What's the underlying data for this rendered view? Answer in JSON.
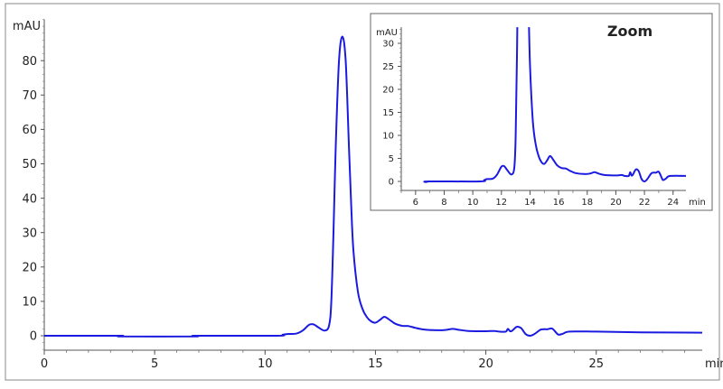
{
  "chart_data": [
    {
      "type": "line",
      "ylabel": "mAU",
      "xlabel": "min",
      "xlim": [
        0,
        29.8
      ],
      "ylim": [
        -4,
        92
      ],
      "xticks": [
        0,
        5,
        10,
        15,
        20,
        25
      ],
      "yticks": [
        0,
        10,
        20,
        30,
        40,
        50,
        60,
        70,
        80
      ],
      "grid": false,
      "color": "#1a1ae0",
      "points": [
        [
          0,
          0
        ],
        [
          3.4,
          0
        ],
        [
          3.5,
          -0.2
        ],
        [
          6.8,
          -0.2
        ],
        [
          6.9,
          0
        ],
        [
          10.5,
          0
        ],
        [
          10.8,
          0.3
        ],
        [
          11.0,
          0.5
        ],
        [
          11.4,
          0.6
        ],
        [
          11.7,
          1.5
        ],
        [
          12.0,
          3.2
        ],
        [
          12.2,
          3.3
        ],
        [
          12.4,
          2.5
        ],
        [
          12.7,
          1.5
        ],
        [
          12.9,
          3
        ],
        [
          13.0,
          10
        ],
        [
          13.1,
          30
        ],
        [
          13.2,
          55
        ],
        [
          13.35,
          80
        ],
        [
          13.5,
          87
        ],
        [
          13.65,
          80
        ],
        [
          13.8,
          55
        ],
        [
          13.9,
          38
        ],
        [
          14.0,
          25
        ],
        [
          14.2,
          13
        ],
        [
          14.4,
          8
        ],
        [
          14.6,
          5.5
        ],
        [
          14.8,
          4.2
        ],
        [
          15.0,
          3.8
        ],
        [
          15.2,
          4.6
        ],
        [
          15.4,
          5.5
        ],
        [
          15.6,
          4.8
        ],
        [
          15.9,
          3.5
        ],
        [
          16.2,
          2.9
        ],
        [
          16.5,
          2.8
        ],
        [
          16.8,
          2.3
        ],
        [
          17.2,
          1.8
        ],
        [
          17.8,
          1.6
        ],
        [
          18.2,
          1.7
        ],
        [
          18.5,
          2.0
        ],
        [
          18.8,
          1.7
        ],
        [
          19.2,
          1.4
        ],
        [
          20.0,
          1.3
        ],
        [
          20.4,
          1.4
        ],
        [
          20.6,
          1.2
        ],
        [
          20.9,
          1.2
        ],
        [
          21.0,
          2.0
        ],
        [
          21.1,
          1.3
        ],
        [
          21.2,
          1.5
        ],
        [
          21.4,
          2.6
        ],
        [
          21.6,
          2.2
        ],
        [
          21.8,
          0.5
        ],
        [
          22.0,
          0
        ],
        [
          22.2,
          0.5
        ],
        [
          22.5,
          1.8
        ],
        [
          22.8,
          1.9
        ],
        [
          23.0,
          2.1
        ],
        [
          23.2,
          0.8
        ],
        [
          23.3,
          0.3
        ],
        [
          23.5,
          0.6
        ],
        [
          23.8,
          1.2
        ],
        [
          25,
          1.2
        ],
        [
          27,
          1.0
        ],
        [
          29.8,
          0.9
        ]
      ]
    },
    {
      "type": "line",
      "title": "Zoom",
      "ylabel": "mAU",
      "xlabel": "min",
      "xlim": [
        5,
        24.9
      ],
      "ylim": [
        -2,
        33.5
      ],
      "xticks": [
        6,
        8,
        10,
        12,
        14,
        16,
        18,
        20,
        22,
        24
      ],
      "yticks": [
        0,
        5,
        10,
        15,
        20,
        25,
        30
      ],
      "grid": false,
      "color": "#1a1ae0"
    }
  ]
}
